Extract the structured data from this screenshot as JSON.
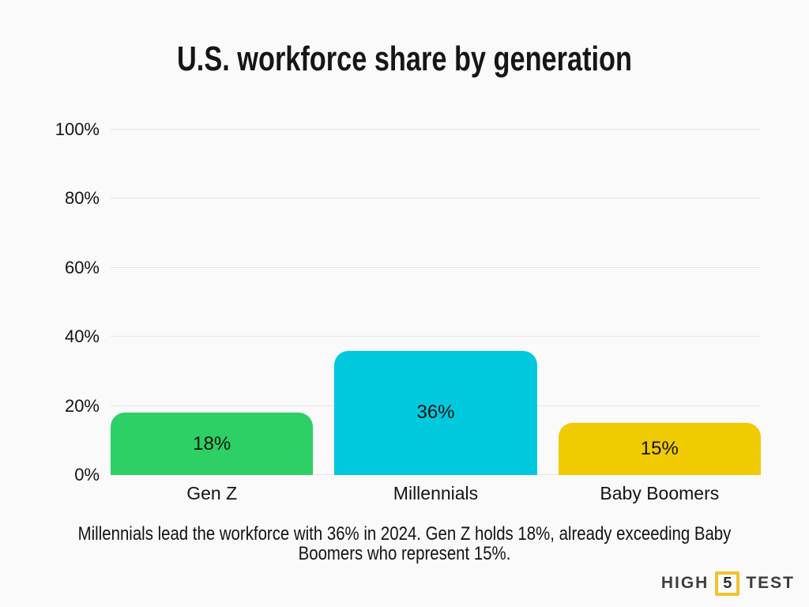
{
  "title": "U.S. workforce share by generation",
  "caption": "Millennials lead the workforce with 36% in 2024. Gen Z holds 18%, already exceeding Baby Boomers who represent 15%.",
  "logo": {
    "left": "HIGH",
    "number": "5",
    "right": "TEST",
    "text_color": "#3E3E3E",
    "box_border_color": "#F2C230"
  },
  "colors": {
    "background": "#FAFAFA",
    "gridline": "#E5E5E5",
    "text": "#141414"
  },
  "chart_data": {
    "type": "bar",
    "title": "U.S. workforce share by generation",
    "categories": [
      "Gen Z",
      "Millennials",
      "Baby Boomers"
    ],
    "values": [
      18,
      36,
      15
    ],
    "value_labels": [
      "18%",
      "36%",
      "15%"
    ],
    "bar_colors": [
      "#2DD064",
      "#00C9DE",
      "#F0CB02"
    ],
    "xlabel": "",
    "ylabel": "",
    "ylim": [
      0,
      100
    ],
    "yticks": [
      {
        "value": 0,
        "label": "0%"
      },
      {
        "value": 20,
        "label": "20%"
      },
      {
        "value": 40,
        "label": "40%"
      },
      {
        "value": 60,
        "label": "60%"
      },
      {
        "value": 80,
        "label": "80%"
      },
      {
        "value": 100,
        "label": "100%"
      }
    ],
    "grid": true,
    "legend": false
  }
}
